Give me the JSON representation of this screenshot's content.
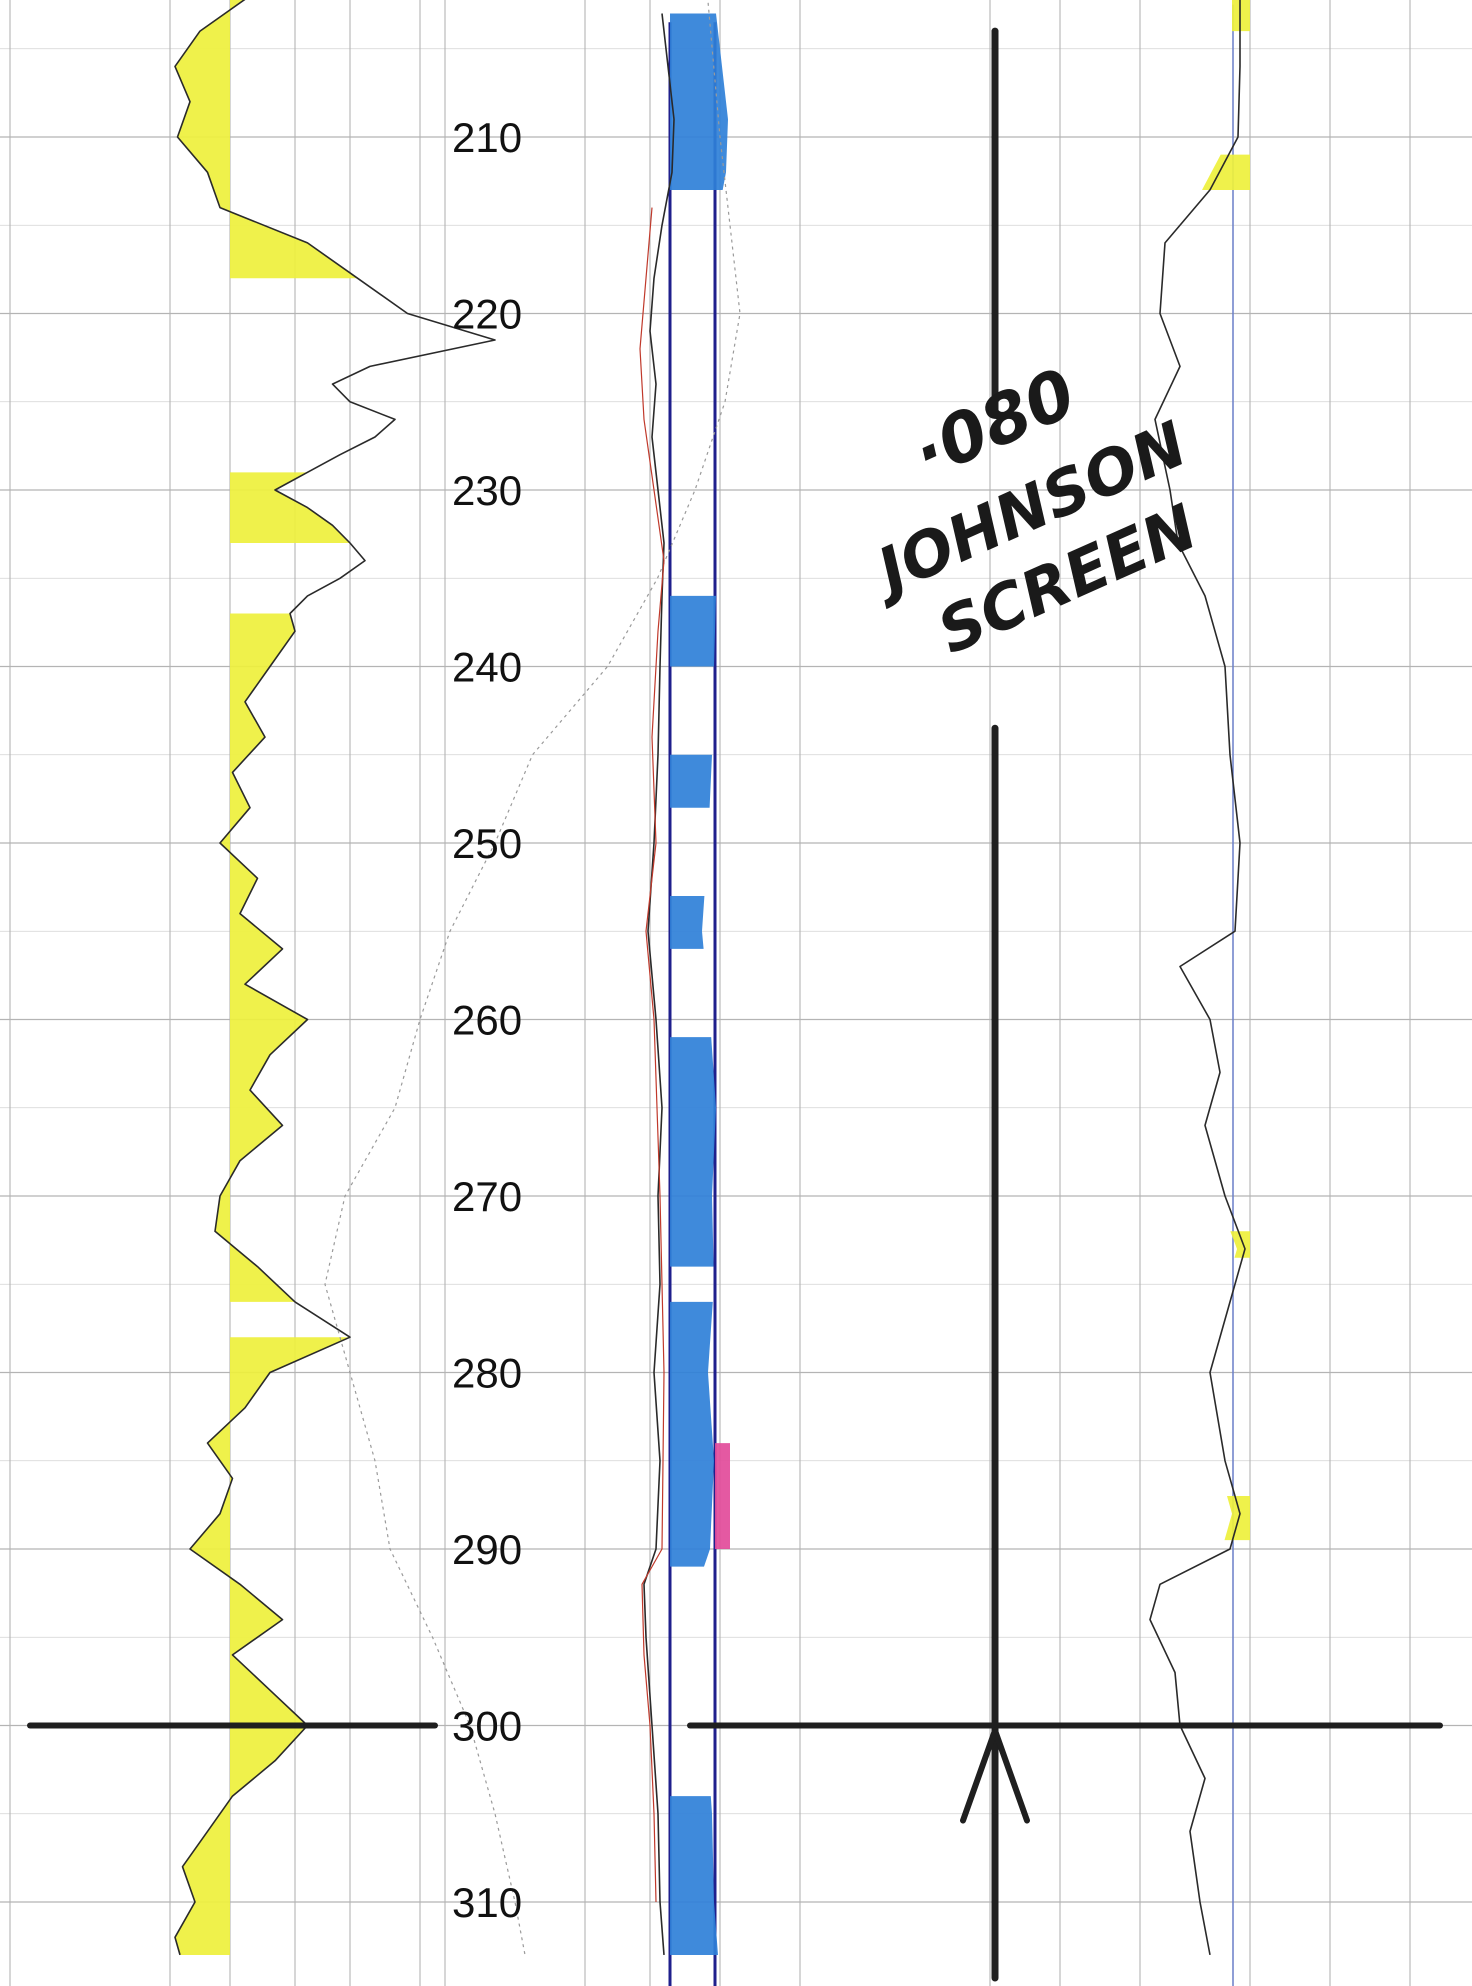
{
  "colors": {
    "grid": "#b4b4b4",
    "grid_faint": "#d2d2d2",
    "track_line": "#1f1f8c",
    "curve": "#2a2a2a",
    "curve_dotted": "#9a9a9a",
    "red_trace": "#c0392b",
    "yellow_fill": "#eef03c",
    "blue_fill": "#2f80d8",
    "pink_fill": "#e24b9a",
    "marker": "#1f1f1f"
  },
  "chart_data": {
    "type": "line",
    "title": "",
    "depth_axis": {
      "tick_labels": [
        "210",
        "220",
        "230",
        "240",
        "250",
        "260",
        "270",
        "280",
        "290",
        "300",
        "310"
      ],
      "range": [
        202,
        313
      ]
    },
    "annotations": {
      "note_line1": "·080",
      "note_line2": "JOHNSON",
      "note_line3": "SCREEN",
      "marker_depth": 300,
      "screen_interval": [
        204,
        313
      ]
    },
    "tracks": [
      {
        "name": "",
        "series": [
          {
            "style": "solid",
            "depth": [
              202,
              204,
              206,
              208,
              210,
              212,
              214,
              216,
              218,
              220,
              221.5,
              223,
              224,
              225,
              226,
              227,
              228,
              229,
              230,
              231,
              232,
              233,
              234,
              235,
              236,
              237,
              238,
              240,
              242,
              244,
              246,
              248,
              250,
              252,
              254,
              256,
              258,
              260,
              262,
              264,
              266,
              268,
              270,
              272,
              274,
              276,
              278,
              280,
              282,
              284,
              286,
              288,
              290,
              292,
              294,
              296,
              298,
              300,
              302,
              304,
              306,
              308,
              310,
              312,
              313
            ],
            "value": [
              0.32,
              0.12,
              0.02,
              0.08,
              0.03,
              0.15,
              0.2,
              0.55,
              0.75,
              0.95,
              1.3,
              0.8,
              0.65,
              0.72,
              0.9,
              0.82,
              0.68,
              0.55,
              0.42,
              0.55,
              0.65,
              0.72,
              0.78,
              0.68,
              0.55,
              0.48,
              0.5,
              0.4,
              0.3,
              0.38,
              0.25,
              0.32,
              0.2,
              0.35,
              0.28,
              0.45,
              0.3,
              0.55,
              0.4,
              0.32,
              0.45,
              0.28,
              0.2,
              0.18,
              0.35,
              0.5,
              0.72,
              0.4,
              0.3,
              0.15,
              0.25,
              0.2,
              0.08,
              0.28,
              0.45,
              0.25,
              0.4,
              0.55,
              0.42,
              0.25,
              0.15,
              0.05,
              0.1,
              0.02,
              0.04
            ]
          },
          {
            "style": "dotted",
            "depth": [
              202,
              210,
              220,
              225,
              230,
              235,
              240,
              245,
              250,
              255,
              260,
              265,
              270,
              275,
              280,
              285,
              290,
              295,
              300,
              305,
              310,
              313
            ],
            "value": [
              2.15,
              2.2,
              2.28,
              2.22,
              2.1,
              1.95,
              1.75,
              1.45,
              1.3,
              1.12,
              1.0,
              0.9,
              0.7,
              0.62,
              0.72,
              0.82,
              0.88,
              1.05,
              1.2,
              1.3,
              1.38,
              1.42
            ]
          }
        ],
        "fills": [
          {
            "color": "yellow",
            "from_depth": 202,
            "to_depth": 218
          },
          {
            "color": "yellow",
            "from_depth": 229,
            "to_depth": 233
          },
          {
            "color": "yellow",
            "from_depth": 237,
            "to_depth": 276
          },
          {
            "color": "yellow",
            "from_depth": 278,
            "to_depth": 313
          }
        ]
      },
      {
        "name": "",
        "series": [
          {
            "style": "solid",
            "depth": [
              203,
              206,
              209,
              212,
              215,
              218,
              221,
              224,
              227,
              230,
              233,
              236,
              240,
              245,
              250,
              255,
              260,
              265,
              270,
              275,
              280,
              285,
              290,
              292,
              295,
              300,
              305,
              310,
              313
            ],
            "value": [
              0.55,
              0.7,
              0.85,
              0.8,
              0.55,
              0.35,
              0.25,
              0.4,
              0.3,
              0.45,
              0.6,
              0.55,
              0.5,
              0.45,
              0.35,
              0.2,
              0.4,
              0.55,
              0.45,
              0.5,
              0.35,
              0.5,
              0.4,
              0.1,
              0.15,
              0.3,
              0.45,
              0.5,
              0.6
            ]
          },
          {
            "style": "red",
            "depth": [
              214,
              218,
              222,
              226,
              230,
              234,
              238,
              244,
              250,
              255,
              260,
              270,
              280,
              290,
              292,
              296,
              300,
              305,
              310
            ],
            "value": [
              0.3,
              0.15,
              0.0,
              0.1,
              0.35,
              0.6,
              0.45,
              0.3,
              0.4,
              0.15,
              0.35,
              0.5,
              0.6,
              0.55,
              0.05,
              0.1,
              0.25,
              0.35,
              0.4
            ]
          }
        ],
        "fills": [
          {
            "color": "blue",
            "from_depth": 203,
            "to_depth": 213
          },
          {
            "color": "blue",
            "from_depth": 236,
            "to_depth": 240
          },
          {
            "color": "blue",
            "from_depth": 245,
            "to_depth": 248
          },
          {
            "color": "blue",
            "from_depth": 253,
            "to_depth": 256
          },
          {
            "color": "blue",
            "from_depth": 261,
            "to_depth": 274
          },
          {
            "color": "blue",
            "from_depth": 276,
            "to_depth": 291
          },
          {
            "color": "blue",
            "from_depth": 304,
            "to_depth": 313
          },
          {
            "color": "pink",
            "from_depth": 284,
            "to_depth": 290
          }
        ]
      },
      {
        "name": "",
        "series": [
          {
            "style": "solid",
            "depth": [
              202,
              206,
              210,
              213,
              216,
              220,
              223,
              226,
              230,
              233,
              236,
              240,
              245,
              250,
              255,
              257,
              260,
              263,
              266,
              270,
              273,
              276,
              280,
              285,
              288,
              290,
              292,
              294,
              297,
              300,
              303,
              306,
              310,
              313
            ],
            "value": [
              0.9,
              0.9,
              0.88,
              0.6,
              0.15,
              0.1,
              0.3,
              0.05,
              0.2,
              0.28,
              0.55,
              0.75,
              0.8,
              0.9,
              0.85,
              0.3,
              0.6,
              0.7,
              0.55,
              0.75,
              0.95,
              0.8,
              0.6,
              0.75,
              0.9,
              0.8,
              0.1,
              0.0,
              0.25,
              0.3,
              0.55,
              0.4,
              0.5,
              0.6
            ]
          }
        ],
        "fills": [
          {
            "color": "yellow",
            "from_depth": 202,
            "to_depth": 204
          },
          {
            "color": "yellow",
            "from_depth": 211,
            "to_depth": 213
          },
          {
            "color": "yellow",
            "from_depth": 272,
            "to_depth": 273.5
          },
          {
            "color": "yellow",
            "from_depth": 287,
            "to_depth": 289.5
          }
        ]
      }
    ]
  }
}
